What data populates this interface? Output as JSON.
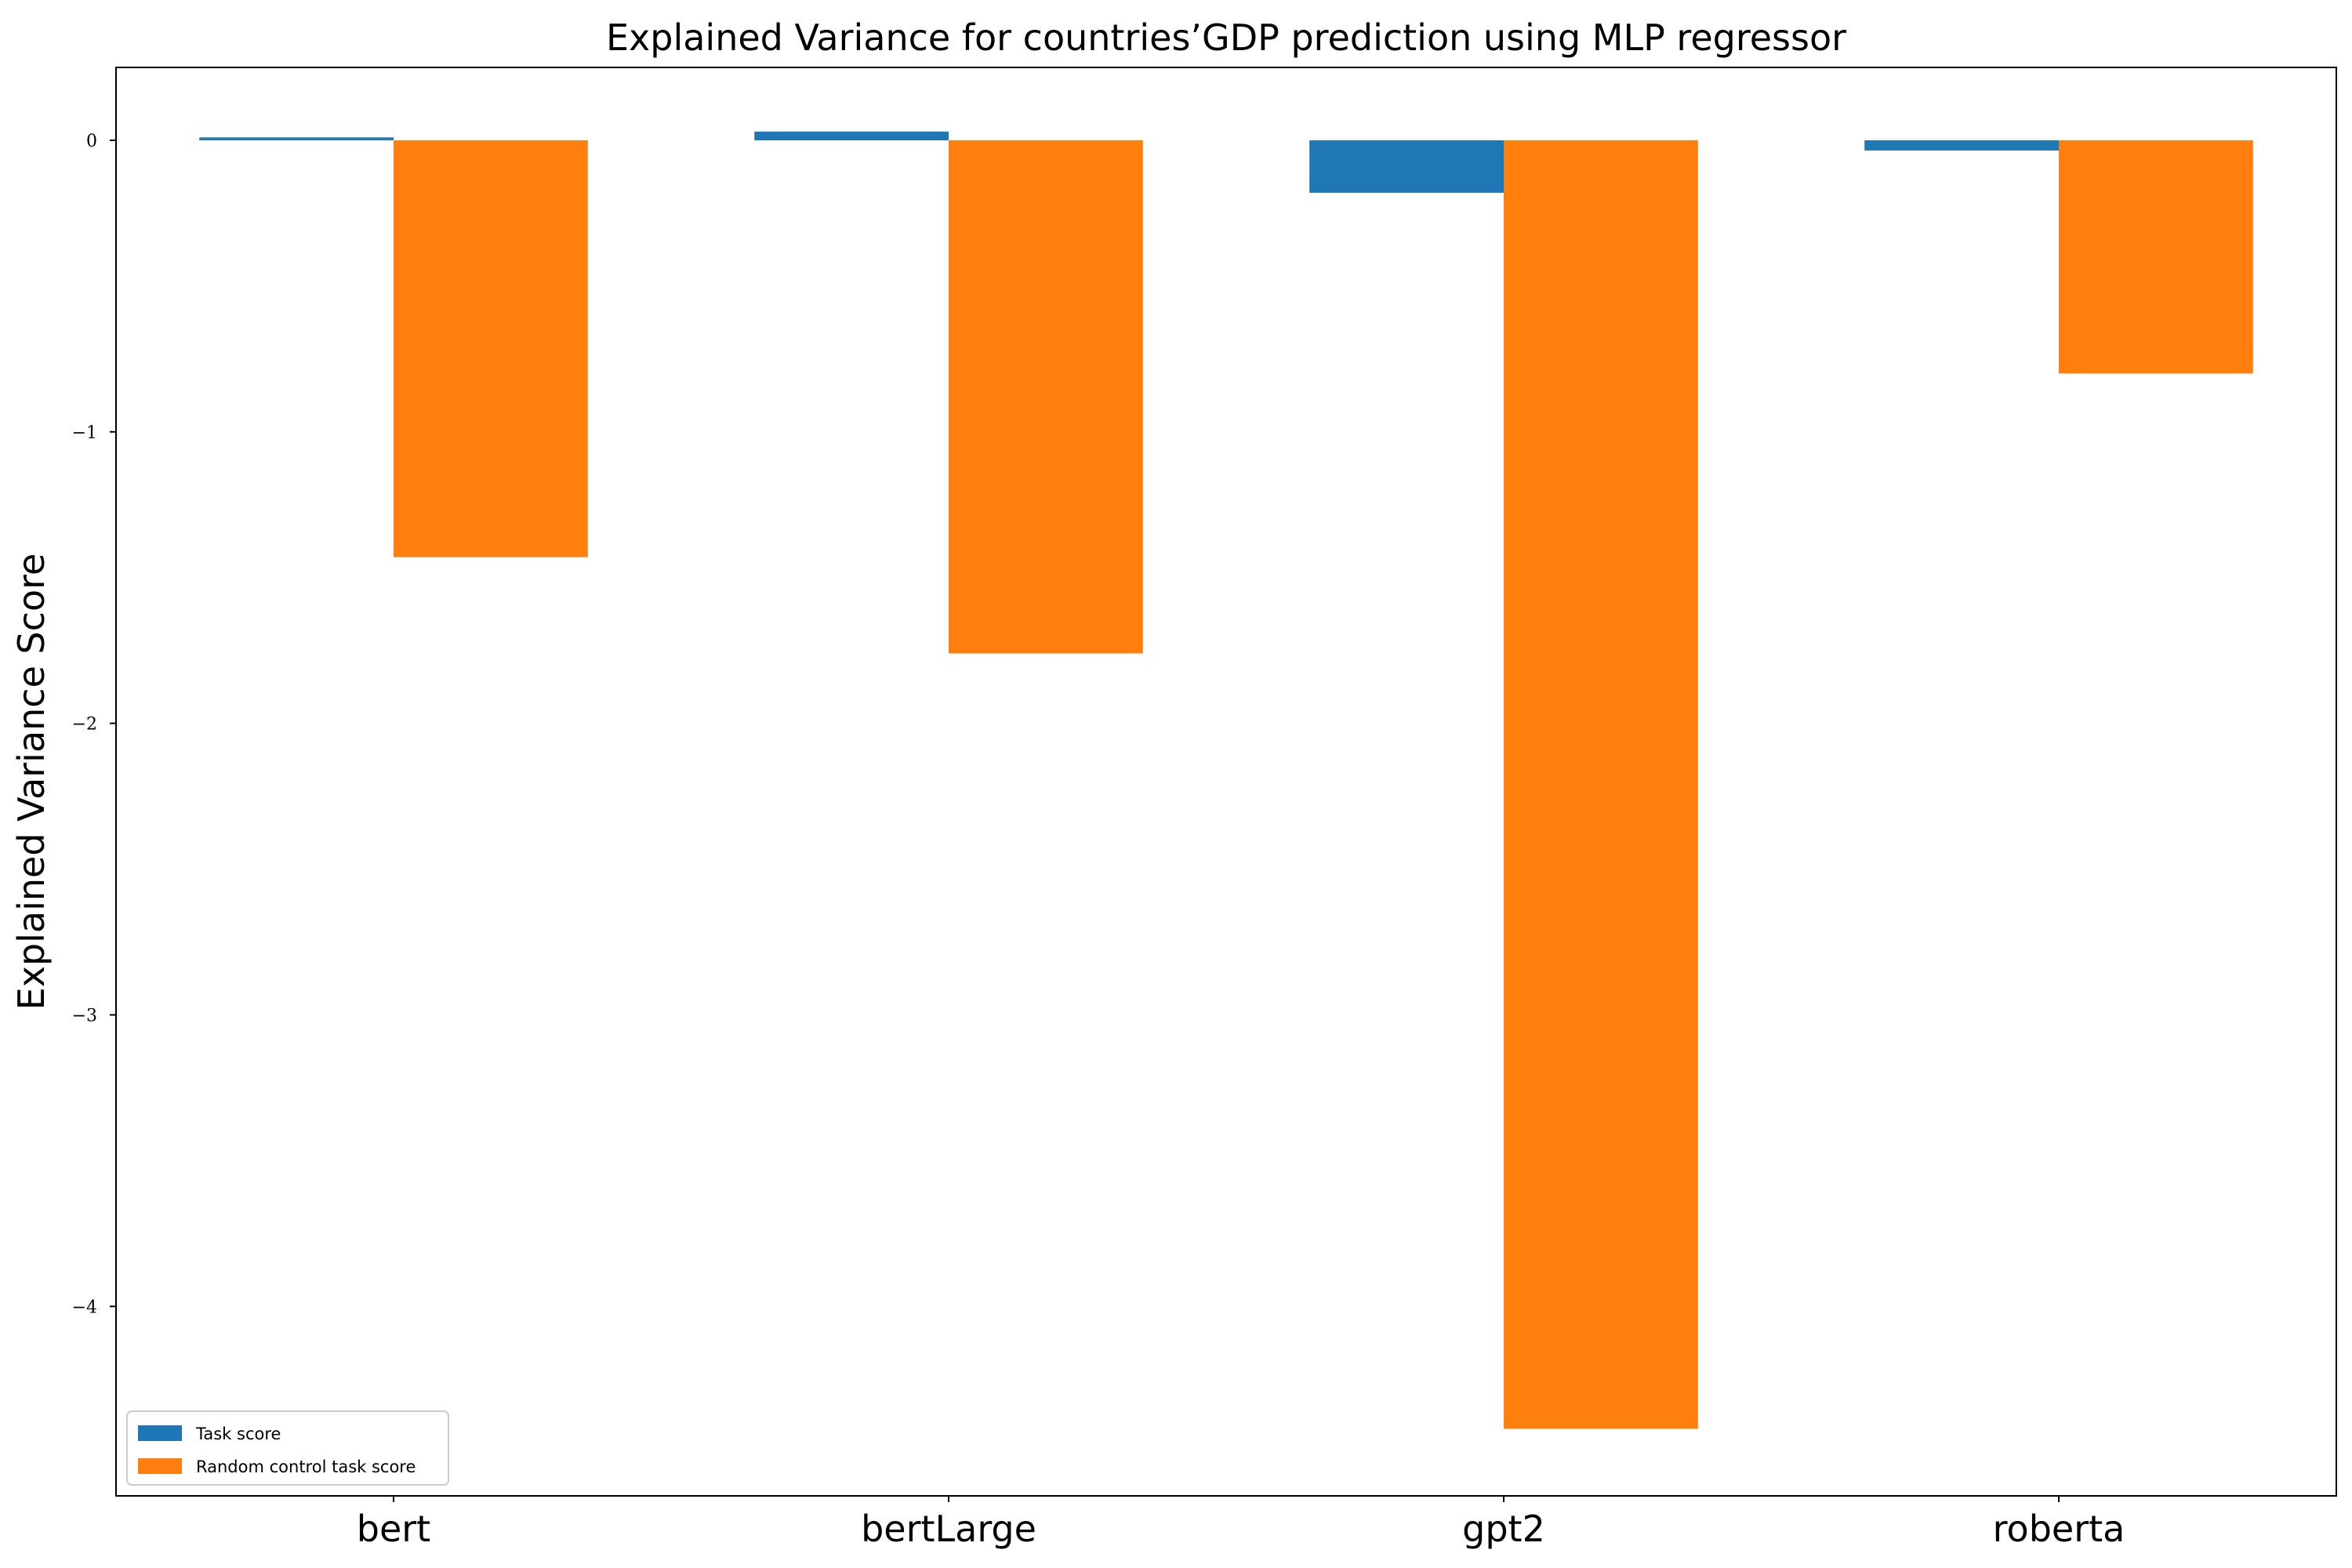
{
  "chart_data": {
    "type": "bar",
    "title": "Explained Variance for countries’GDP prediction using MLP regressor",
    "xlabel": "",
    "ylabel": "Explained Variance Score",
    "categories": [
      "bert",
      "bertLarge",
      "gpt2",
      "roberta"
    ],
    "series": [
      {
        "name": "Task score",
        "color": "#1f77b4",
        "values": [
          0.01,
          0.03,
          -0.18,
          -0.035
        ]
      },
      {
        "name": "Random control task score",
        "color": "#ff7f0e",
        "values": [
          -1.43,
          -1.76,
          -4.42,
          -0.8
        ]
      }
    ],
    "ylim": [
      -4.65,
      0.25
    ],
    "yticks": [
      0,
      -1,
      -2,
      -3,
      -4
    ],
    "ytick_labels": [
      "0",
      "−1",
      "−2",
      "−3",
      "−4"
    ],
    "grid": false,
    "legend_position": "lower-left"
  }
}
